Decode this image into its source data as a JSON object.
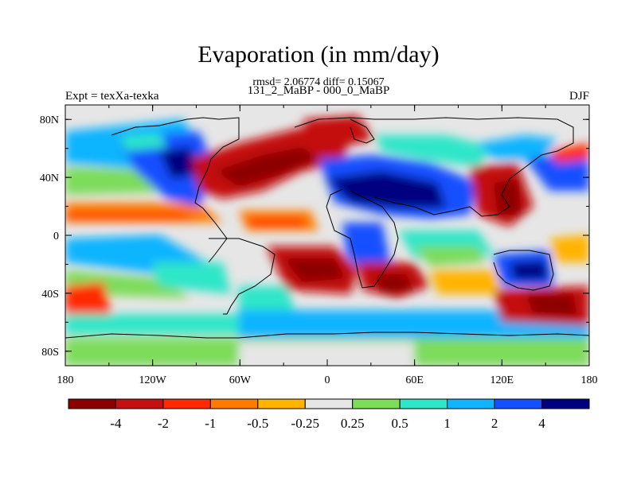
{
  "title": "Evaporation (in mm/day)",
  "stats": "rmsd= 2.06774 diff= 0.15067",
  "subtitle": "131_2_MaBP - 000_0_MaBP",
  "expt_label": "Expt = texXa-texka",
  "season": "DJF",
  "axes": {
    "lon_ticks": [
      {
        "label": "180",
        "value": -180
      },
      {
        "label": "120W",
        "value": -120
      },
      {
        "label": "60W",
        "value": -60
      },
      {
        "label": "0",
        "value": 0
      },
      {
        "label": "60E",
        "value": 60
      },
      {
        "label": "120E",
        "value": 120
      },
      {
        "label": "180",
        "value": 180
      }
    ],
    "lat_ticks": [
      {
        "label": "80N",
        "value": 80
      },
      {
        "label": "40N",
        "value": 40
      },
      {
        "label": "0",
        "value": 0
      },
      {
        "label": "40S",
        "value": -40
      },
      {
        "label": "80S",
        "value": -80
      }
    ]
  },
  "colorbar": {
    "colors": [
      "#8b0000",
      "#c41010",
      "#ff2a00",
      "#ff7a00",
      "#ffb400",
      "#e6e6e6",
      "#7ddc5a",
      "#2ee6c8",
      "#10b4ff",
      "#1450ff",
      "#000080"
    ],
    "labels": [
      "-4",
      "-2",
      "-1",
      "-0.5",
      "-0.25",
      "0.25",
      "0.5",
      "1",
      "2",
      "4"
    ]
  },
  "icons": {
    "coastline": "continent-outline"
  }
}
